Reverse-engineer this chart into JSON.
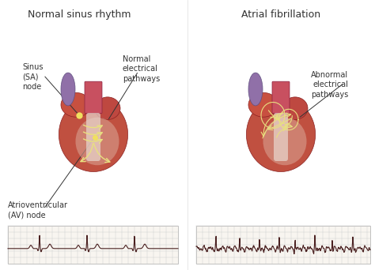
{
  "title_left": "Normal sinus rhythm",
  "title_right": "Atrial fibrillation",
  "label_sinus": "Sinus\n(SA)\nnode",
  "label_normal_pathways": "Normal\nelectrical\npathways",
  "label_av_node": "Atrioventricular\n(AV) node",
  "label_abnormal_pathways": "Abnormal\nelectrical\npathways",
  "bg_color": "#ffffff",
  "text_color": "#333333",
  "ecg_color": "#4a2020",
  "grid_color": "#cccccc",
  "title_fontsize": 9,
  "label_fontsize": 7,
  "fig_width": 4.74,
  "fig_height": 3.42,
  "dpi": 100
}
